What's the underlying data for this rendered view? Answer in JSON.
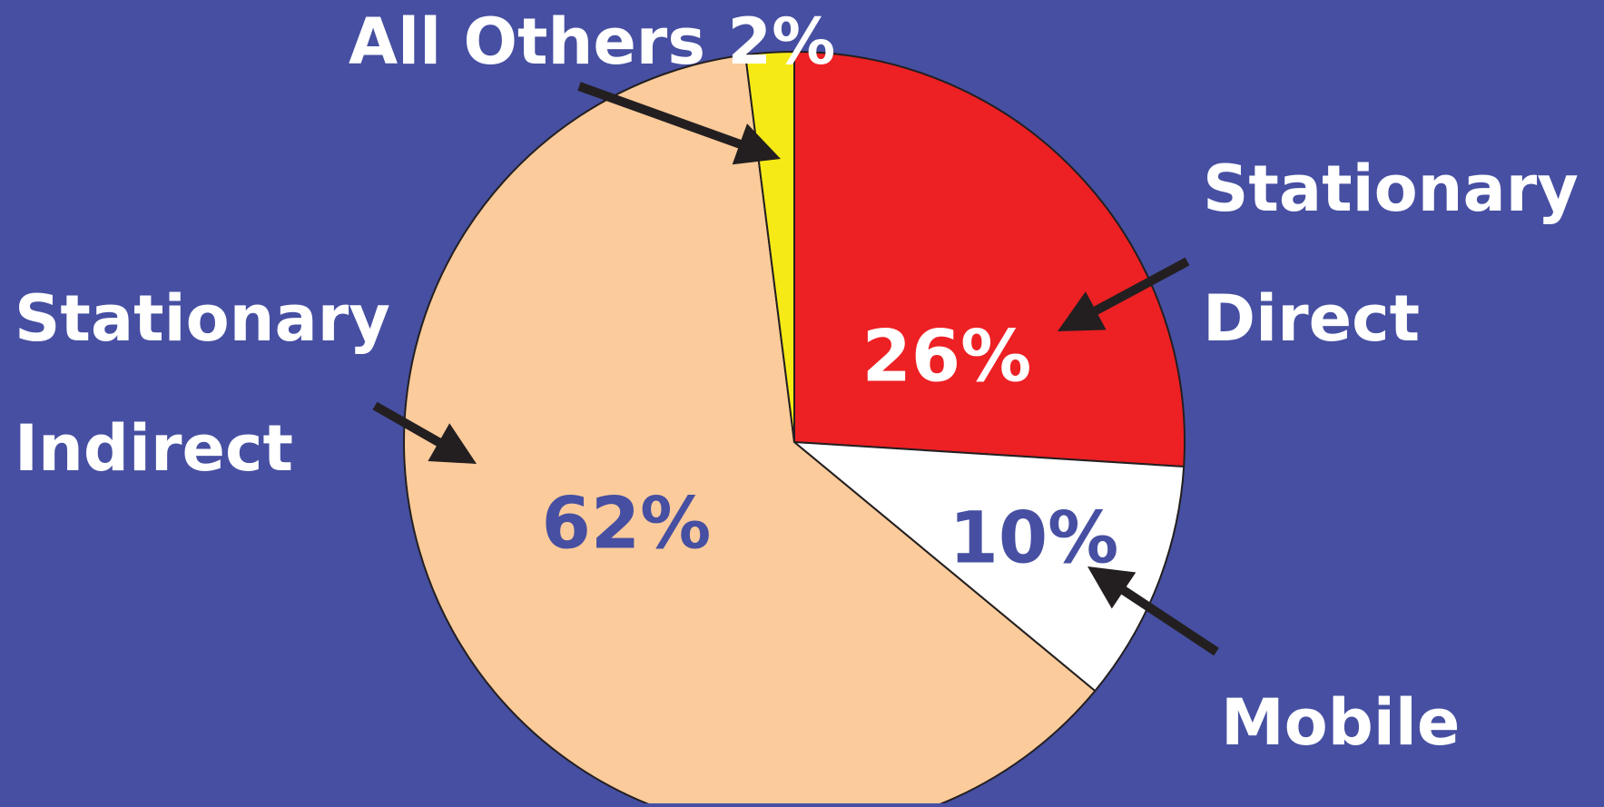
{
  "chart_data": {
    "type": "pie",
    "title": "",
    "start_angle_deg": 0,
    "direction": "clockwise",
    "slices": [
      {
        "name": "Stationary Direct",
        "value": 26,
        "label": "26%",
        "color": "#ed2024",
        "label_color": "#ffffff"
      },
      {
        "name": "Mobile",
        "value": 10,
        "label": "10%",
        "color": "#ffffff",
        "label_color": "#464fa1"
      },
      {
        "name": "Stationary Indirect",
        "value": 62,
        "label": "62%",
        "color": "#fbcb9b",
        "label_color": "#464fa1"
      },
      {
        "name": "All Others",
        "value": 2,
        "label": "",
        "color": "#f6ea16",
        "label_color": "#ffffff"
      }
    ]
  },
  "callouts": {
    "all_others": "All Others 2%",
    "stationary_direct_line1": "Stationary",
    "stationary_direct_line2": "Direct",
    "stationary_indirect_line1": "Stationary",
    "stationary_indirect_line2": "Indirect",
    "mobile": "Mobile"
  },
  "colors": {
    "background": "#464fa1",
    "arrow": "#231f20",
    "outline": "#231f20",
    "callout_text": "#ffffff"
  }
}
